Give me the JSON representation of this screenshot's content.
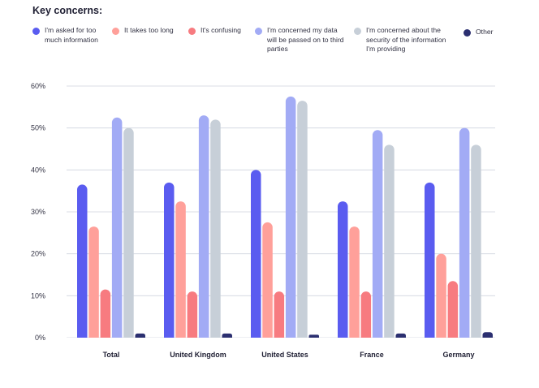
{
  "title": "Key concerns:",
  "chart_data": {
    "type": "bar",
    "categories": [
      "Total",
      "United Kingdom",
      "United States",
      "France",
      "Germany"
    ],
    "yticks": [
      "0%",
      "10%",
      "20%",
      "30%",
      "40%",
      "50%",
      "60%"
    ],
    "ylim": [
      0,
      60
    ],
    "grid": true,
    "legend_position": "top",
    "series": [
      {
        "name": "I'm asked for too much information",
        "color": "#5a5cf0",
        "values": [
          36.5,
          37,
          40,
          32.5,
          37
        ]
      },
      {
        "name": "It takes too long",
        "color": "#ffa09a",
        "values": [
          26.5,
          32.5,
          27.5,
          26.5,
          20
        ]
      },
      {
        "name": "It's confusing",
        "color": "#f77b80",
        "values": [
          11.5,
          11,
          11,
          11,
          13.5
        ]
      },
      {
        "name": "I'm concerned my data will be passed on to third parties",
        "color": "#a2abf5",
        "values": [
          52.5,
          53,
          57.5,
          49.5,
          50
        ]
      },
      {
        "name": "I'm concerned about the security of the information I'm providing",
        "color": "#c7cfd8",
        "values": [
          50,
          52,
          56.5,
          46,
          46
        ]
      },
      {
        "name": "Other",
        "color": "#2b2f70",
        "values": [
          1,
          1,
          0.7,
          1,
          1.3
        ]
      }
    ]
  }
}
